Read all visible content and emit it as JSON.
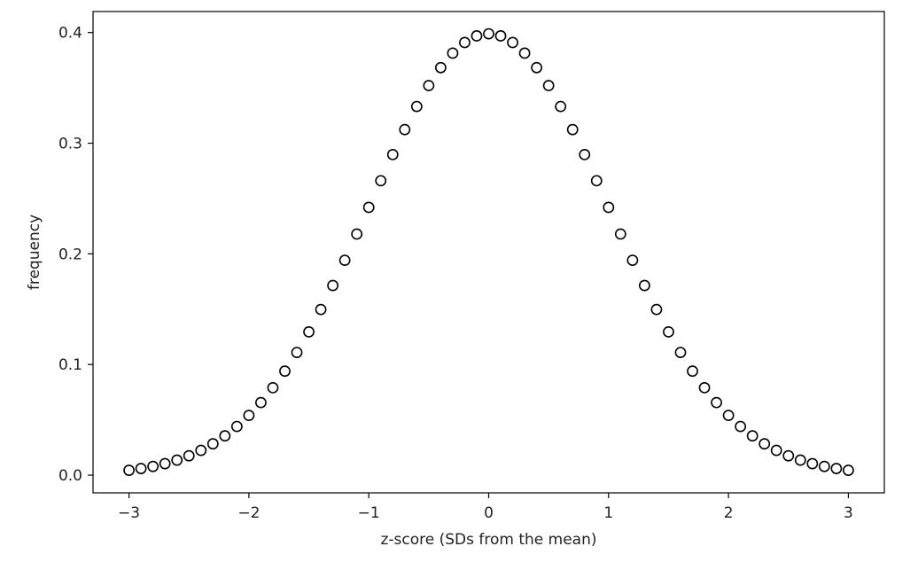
{
  "chart_data": {
    "type": "scatter",
    "title": "",
    "xlabel": "z-score (SDs from the mean)",
    "ylabel": "frequency",
    "xlim": [
      -3.3,
      3.3
    ],
    "ylim": [
      -0.016,
      0.419
    ],
    "xticks": [
      -3,
      -2,
      -1,
      0,
      1,
      2,
      3
    ],
    "xtick_labels": [
      "−3",
      "−2",
      "−1",
      "0",
      "1",
      "2",
      "3"
    ],
    "yticks": [
      0.0,
      0.1,
      0.2,
      0.3,
      0.4
    ],
    "ytick_labels": [
      "0.0",
      "0.1",
      "0.2",
      "0.3",
      "0.4"
    ],
    "grid": false,
    "legend": "none",
    "marker": "open-circle",
    "marker_color": "#000000",
    "series": [
      {
        "x": [
          -3.0,
          -2.9,
          -2.8,
          -2.7,
          -2.6,
          -2.5,
          -2.4,
          -2.3,
          -2.2,
          -2.1,
          -2.0,
          -1.9,
          -1.8,
          -1.7,
          -1.6,
          -1.5,
          -1.4,
          -1.3,
          -1.2,
          -1.1,
          -1.0,
          -0.9,
          -0.8,
          -0.7,
          -0.6,
          -0.5,
          -0.4,
          -0.3,
          -0.2,
          -0.1,
          0.0,
          0.1,
          0.2,
          0.3,
          0.4,
          0.5,
          0.6,
          0.7,
          0.8,
          0.9,
          1.0,
          1.1,
          1.2,
          1.3,
          1.4,
          1.5,
          1.6,
          1.7,
          1.8,
          1.9,
          2.0,
          2.1,
          2.2,
          2.3,
          2.4,
          2.5,
          2.6,
          2.7,
          2.8,
          2.9,
          3.0
        ],
        "y": [
          0.0044,
          0.006,
          0.0079,
          0.0104,
          0.0136,
          0.0175,
          0.0224,
          0.0283,
          0.0355,
          0.044,
          0.054,
          0.0656,
          0.079,
          0.094,
          0.1109,
          0.1295,
          0.1497,
          0.1714,
          0.1942,
          0.2179,
          0.242,
          0.2661,
          0.2897,
          0.3123,
          0.3332,
          0.3521,
          0.3683,
          0.3814,
          0.391,
          0.397,
          0.3989,
          0.397,
          0.391,
          0.3814,
          0.3683,
          0.3521,
          0.3332,
          0.3123,
          0.2897,
          0.2661,
          0.242,
          0.2179,
          0.1942,
          0.1714,
          0.1497,
          0.1295,
          0.1109,
          0.094,
          0.079,
          0.0656,
          0.054,
          0.044,
          0.0355,
          0.0283,
          0.0224,
          0.0175,
          0.0136,
          0.0104,
          0.0079,
          0.006,
          0.0044
        ]
      }
    ]
  }
}
